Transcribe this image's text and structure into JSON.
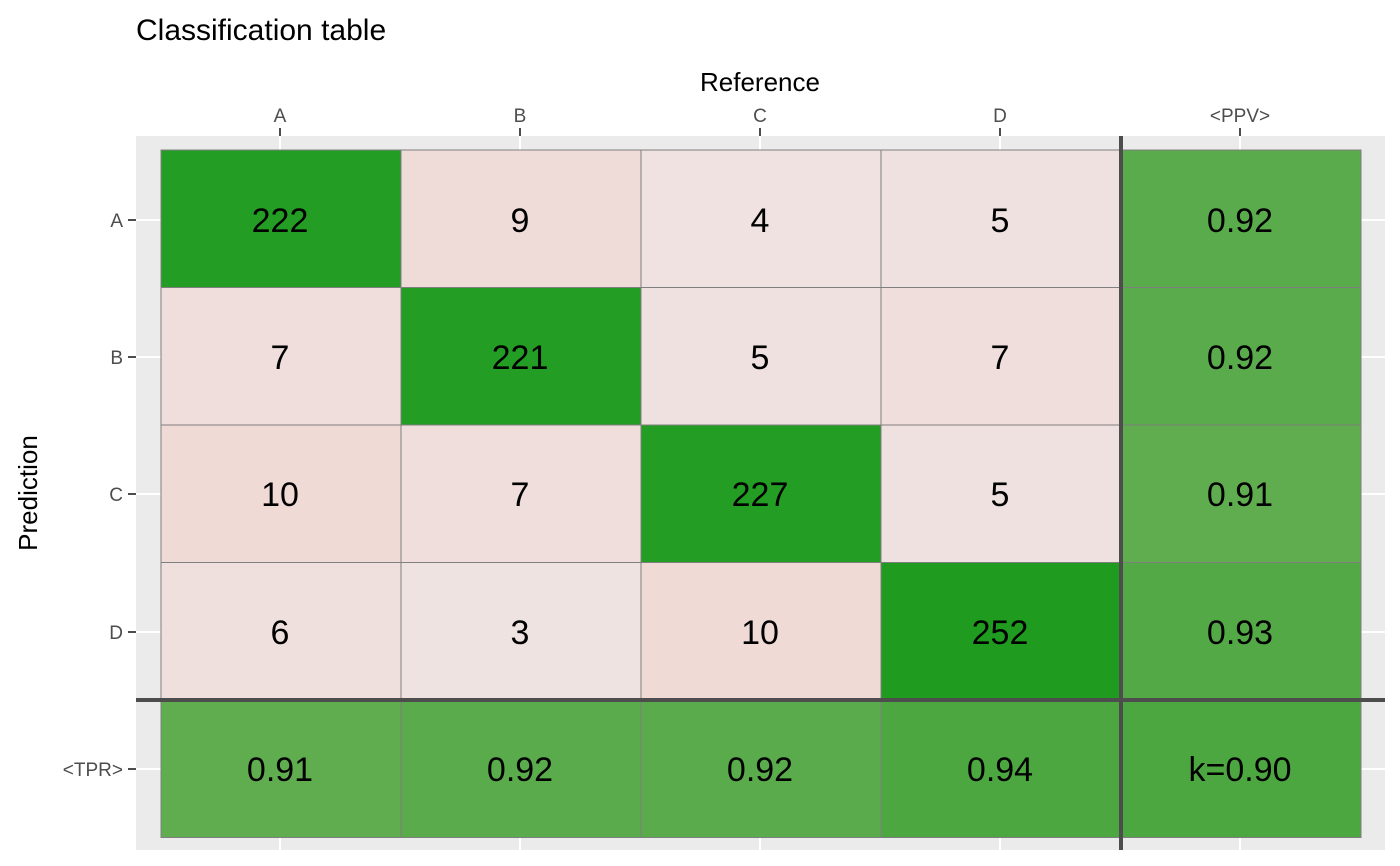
{
  "chart_data": {
    "type": "heatmap",
    "title": "Classification table",
    "xlabel": "Reference",
    "ylabel": "Prediction",
    "x_categories": [
      "A",
      "B",
      "C",
      "D",
      "<PPV>"
    ],
    "y_categories": [
      "A",
      "B",
      "C",
      "D",
      "<TPR>"
    ],
    "matrix": [
      [
        222,
        9,
        4,
        5
      ],
      [
        7,
        221,
        5,
        7
      ],
      [
        10,
        7,
        227,
        5
      ],
      [
        6,
        3,
        10,
        252
      ]
    ],
    "ppv": [
      "0.92",
      "0.92",
      "0.91",
      "0.93"
    ],
    "tpr": [
      "0.91",
      "0.92",
      "0.92",
      "0.94"
    ],
    "kappa_label": "k=0.90",
    "grid": true,
    "colors": {
      "panel_background": "#ebebeb",
      "gridline": "#ffffff",
      "cell_border": "#7f7f7f",
      "separator": "#4d4d4d",
      "tick": "#4d4d4d",
      "diagonal_max": "#1f9b1f",
      "off_diagonal_light": "#efe7e7",
      "off_diagonal_dark": "#efdad6",
      "metric_low": "#60ad50",
      "metric_high": "#4ca740"
    }
  }
}
